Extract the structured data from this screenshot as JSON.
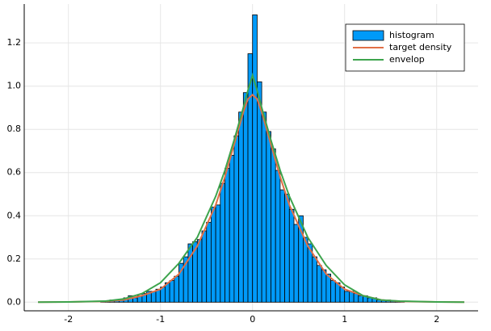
{
  "chart_data": {
    "type": "histogram",
    "xlim": [
      -2.48,
      2.45
    ],
    "ylim": [
      -0.04,
      1.38
    ],
    "xticks": [
      -2,
      -1,
      0,
      1,
      2
    ],
    "yticks": [
      {
        "value": 0,
        "label": "0.0"
      },
      {
        "value": 0.2,
        "label": "0.2"
      },
      {
        "value": 0.4,
        "label": "0.4"
      },
      {
        "value": 0.6,
        "label": "0.6"
      },
      {
        "value": 0.8,
        "label": "0.8"
      },
      {
        "value": 1.0,
        "label": "1.0"
      },
      {
        "value": 1.2,
        "label": "1.2"
      }
    ],
    "grid": true,
    "legend": "top-right",
    "series": [
      {
        "name": "histogram",
        "type": "bar",
        "color": "#009af9",
        "bins": [
          -1.7,
          -1.65,
          -1.6,
          -1.55,
          -1.5,
          -1.45,
          -1.4,
          -1.35,
          -1.3,
          -1.25,
          -1.2,
          -1.15,
          -1.1,
          -1.05,
          -1.0,
          -0.95,
          -0.9,
          -0.85,
          -0.8,
          -0.75,
          -0.7,
          -0.65,
          -0.6,
          -0.55,
          -0.5,
          -0.45,
          -0.4,
          -0.35,
          -0.3,
          -0.25,
          -0.2,
          -0.15,
          -0.1,
          -0.05,
          0.0,
          0.05,
          0.1,
          0.15,
          0.2,
          0.25,
          0.3,
          0.35,
          0.4,
          0.45,
          0.5,
          0.55,
          0.6,
          0.65,
          0.7,
          0.75,
          0.8,
          0.85,
          0.9,
          0.95,
          1.0,
          1.05,
          1.1,
          1.15,
          1.2,
          1.25,
          1.3,
          1.35,
          1.4,
          1.45,
          1.5,
          1.55,
          1.6,
          1.65,
          1.7
        ],
        "values": [
          0,
          0.005,
          0.005,
          0.01,
          0.01,
          0.01,
          0.02,
          0.03,
          0.02,
          0.03,
          0.04,
          0.05,
          0.05,
          0.06,
          0.07,
          0.09,
          0.1,
          0.12,
          0.18,
          0.21,
          0.27,
          0.28,
          0.29,
          0.33,
          0.37,
          0.44,
          0.45,
          0.55,
          0.62,
          0.68,
          0.77,
          0.88,
          0.97,
          1.15,
          1.33,
          1.02,
          0.88,
          0.79,
          0.71,
          0.61,
          0.52,
          0.5,
          0.43,
          0.36,
          0.4,
          0.3,
          0.27,
          0.21,
          0.17,
          0.15,
          0.13,
          0.1,
          0.09,
          0.07,
          0.05,
          0.05,
          0.04,
          0.03,
          0.03,
          0.02,
          0.02,
          0.01,
          0.01,
          0.01,
          0.005,
          0.005,
          0.005,
          0
        ]
      },
      {
        "name": "target density",
        "type": "line",
        "color": "#e26f46",
        "x": [
          -2.33,
          -2,
          -1.6,
          -1.4,
          -1.2,
          -1,
          -0.8,
          -0.6,
          -0.4,
          -0.3,
          -0.2,
          -0.1,
          -0.05,
          0,
          0.05,
          0.1,
          0.2,
          0.3,
          0.4,
          0.6,
          0.8,
          1,
          1.2,
          1.4,
          1.6,
          2,
          2.3
        ],
        "values": [
          0,
          0.001,
          0.004,
          0.01,
          0.03,
          0.06,
          0.13,
          0.26,
          0.45,
          0.58,
          0.73,
          0.88,
          0.94,
          0.96,
          0.94,
          0.88,
          0.73,
          0.58,
          0.45,
          0.26,
          0.13,
          0.06,
          0.03,
          0.01,
          0.004,
          0.001,
          0
        ]
      },
      {
        "name": "envelop",
        "type": "line",
        "color": "#3da44d",
        "x": [
          -2.33,
          -2,
          -1.6,
          -1.4,
          -1.2,
          -1,
          -0.8,
          -0.6,
          -0.4,
          -0.3,
          -0.2,
          -0.1,
          -0.05,
          0,
          0.05,
          0.1,
          0.2,
          0.3,
          0.4,
          0.6,
          0.8,
          1,
          1.2,
          1.4,
          1.6,
          2,
          2.3
        ],
        "values": [
          0,
          0.001,
          0.005,
          0.015,
          0.04,
          0.09,
          0.18,
          0.3,
          0.49,
          0.61,
          0.75,
          0.9,
          0.98,
          1.05,
          0.98,
          0.9,
          0.75,
          0.61,
          0.49,
          0.3,
          0.17,
          0.08,
          0.03,
          0.01,
          0.005,
          0.001,
          0
        ]
      }
    ]
  }
}
